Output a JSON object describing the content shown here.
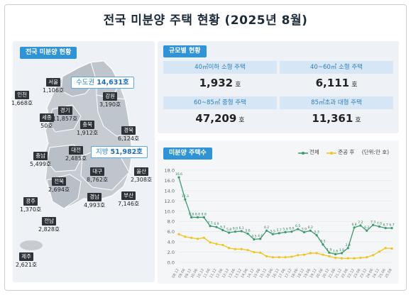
{
  "title": "전국 미분양 주택 현황 (2025년 8월)",
  "national_label": "전국 미분양 현황",
  "capital": {
    "label": "수도권",
    "value": "14,631호"
  },
  "provinces": {
    "label": "지방",
    "value": "51,982호"
  },
  "regions": [
    {
      "name": "서울",
      "value": "1,106호"
    },
    {
      "name": "인천",
      "value": "1,668호"
    },
    {
      "name": "강원",
      "value": "3,190호"
    },
    {
      "name": "경기",
      "value": "11,857호"
    },
    {
      "name": "충북",
      "value": "1,912호"
    },
    {
      "name": "세종",
      "value": "50호"
    },
    {
      "name": "경북",
      "value": "6,124호"
    },
    {
      "name": "충남",
      "value": "5,499호"
    },
    {
      "name": "대전",
      "value": "2,485호"
    },
    {
      "name": "울산",
      "value": "2,308호"
    },
    {
      "name": "대구",
      "value": "8,762호"
    },
    {
      "name": "전북",
      "value": "2,694호"
    },
    {
      "name": "광주",
      "value": "1,370호"
    },
    {
      "name": "경남",
      "value": "4,993호"
    },
    {
      "name": "부산",
      "value": "7,146호"
    },
    {
      "name": "전남",
      "value": "2,828호"
    },
    {
      "name": "제주",
      "value": "2,621호"
    }
  ],
  "size_label": "규모별 현황",
  "sizes": [
    {
      "label": "40㎡이하 소형 주택",
      "value": "1,932",
      "unit": "호"
    },
    {
      "label": "40~60㎡ 소형 주택",
      "value": "6,111",
      "unit": "호"
    },
    {
      "label": "60~85㎡ 중형 주택",
      "value": "47,209",
      "unit": "호"
    },
    {
      "label": "85㎡초과 대형 주택",
      "value": "11,361",
      "unit": "호"
    }
  ],
  "chart_label": "미분양 주택수",
  "legend": {
    "total": "전체",
    "completed": "준공 후",
    "unit": "(단위:만 호)"
  },
  "colors": {
    "accent": "#2f93d8",
    "total": "#3a9a6b",
    "completed": "#f0c419",
    "dark_tag": "#2d3338"
  },
  "chart_data": {
    "type": "line",
    "ylim": [
      0,
      18
    ],
    "yticks": [
      "0.0",
      "2.0",
      "4.0",
      "6.0",
      "8.0",
      "10.0",
      "12.0",
      "14.0",
      "16.0",
      "18.0"
    ],
    "xlabel": "",
    "ylabel": "",
    "x": [
      "08.12",
      "09.06",
      "09.12",
      "10.06",
      "10.12",
      "11.06",
      "11.12",
      "12.06",
      "12.12",
      "13.06",
      "13.12",
      "14.06",
      "14.12",
      "15.06",
      "15.12",
      "16.06",
      "16.12",
      "17.06",
      "17.12",
      "18.06",
      "18.12",
      "19.06",
      "19.12",
      "20.06",
      "20.12",
      "21.06",
      "21.12",
      "22.06",
      "22.12",
      "23.06",
      "23.12",
      "24.06",
      "24.12",
      "25.06",
      "25.08"
    ],
    "series": [
      {
        "name": "전체",
        "values": [
          16.6,
          12.3,
          8.8,
          8.8,
          8.8,
          7.1,
          6.9,
          6.3,
          5.8,
          6.0,
          6.1,
          5.6,
          4.5,
          4.6,
          6.2,
          5.5,
          5.7,
          5.9,
          6.0,
          6.5,
          5.9,
          6.2,
          5.3,
          3.5,
          1.9,
          1.6,
          1.8,
          2.8,
          6.8,
          7.2,
          6.2,
          7.3,
          7.0,
          6.7,
          6.7
        ]
      },
      {
        "name": "준공 후",
        "values": [
          5.5,
          5.0,
          4.8,
          4.6,
          4.8,
          3.9,
          3.6,
          3.4,
          2.8,
          2.6,
          2.6,
          2.4,
          2.0,
          1.9,
          1.2,
          1.0,
          1.0,
          1.0,
          1.1,
          1.4,
          1.5,
          1.8,
          1.8,
          1.5,
          1.2,
          0.9,
          0.8,
          0.8,
          0.8,
          0.9,
          1.0,
          1.4,
          2.1,
          2.8,
          2.7
        ]
      }
    ]
  }
}
